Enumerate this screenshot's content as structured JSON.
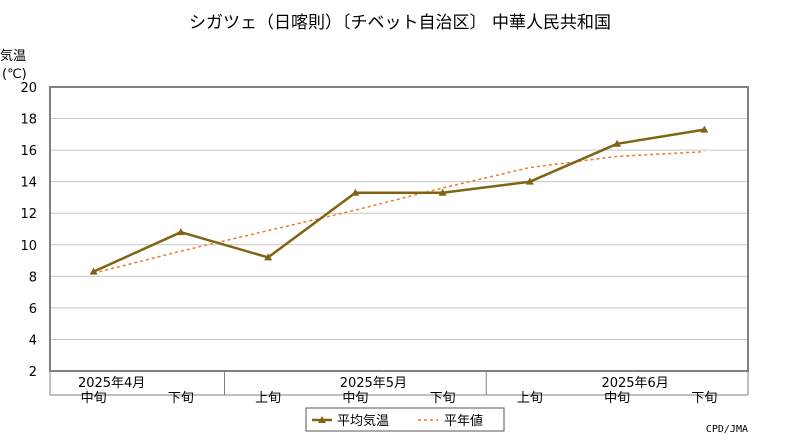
{
  "chart_data": {
    "type": "line",
    "title": "シガツェ（日喀則）〔チベット自治区〕 中華人民共和国",
    "ylabel_line1": "気温",
    "ylabel_line2": "(℃)",
    "ylim": [
      2,
      20
    ],
    "yticks": [
      "2",
      "4",
      "6",
      "8",
      "10",
      "12",
      "14",
      "16",
      "18",
      "20"
    ],
    "grid": true,
    "x_periods": [
      "中旬",
      "下旬",
      "上旬",
      "中旬",
      "下旬",
      "上旬",
      "中旬",
      "下旬"
    ],
    "x_months": [
      {
        "label": "2025年4月",
        "at_index": 0
      },
      {
        "label": "2025年5月",
        "at_index": 3
      },
      {
        "label": "2025年6月",
        "at_index": 6
      }
    ],
    "series": [
      {
        "name": "平均気温",
        "color": "#806414",
        "style": "solid-triangle-markers",
        "values": [
          8.3,
          10.8,
          9.2,
          13.3,
          13.3,
          14.0,
          16.4,
          17.3
        ]
      },
      {
        "name": "平年値",
        "color": "#f07828",
        "style": "dashed",
        "values": [
          8.2,
          9.6,
          10.9,
          12.2,
          13.6,
          14.9,
          15.6,
          15.9
        ]
      }
    ],
    "legend_position": "bottom",
    "credit": "CPD/JMA"
  },
  "colors": {
    "axis_frame": "#808080",
    "grid": "#c8c8c8"
  }
}
